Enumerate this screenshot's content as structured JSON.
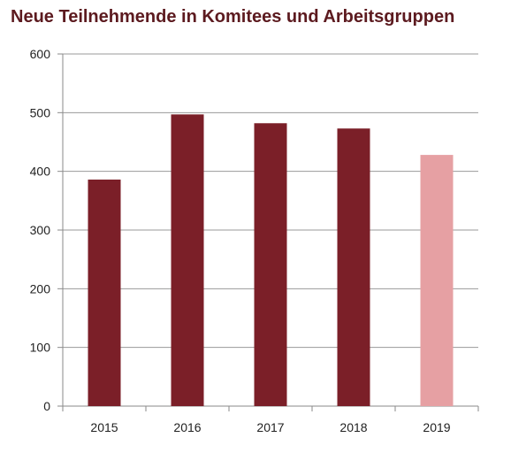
{
  "chart_data": {
    "type": "bar",
    "title": "Neue Teilnehmende in Komitees und Arbeitsgruppen",
    "categories": [
      "2015",
      "2016",
      "2017",
      "2018",
      "2019"
    ],
    "values": [
      386,
      497,
      482,
      473,
      428
    ],
    "ylim": [
      0,
      600
    ],
    "yticks": [
      0,
      100,
      200,
      300,
      400,
      500,
      600
    ],
    "grid": true,
    "colors": {
      "bar": "#7b1f28",
      "bar_highlight": "#e6a0a3",
      "title": "#5c1a1f",
      "grid": "#9a9a9a"
    },
    "highlight_index": 4
  }
}
